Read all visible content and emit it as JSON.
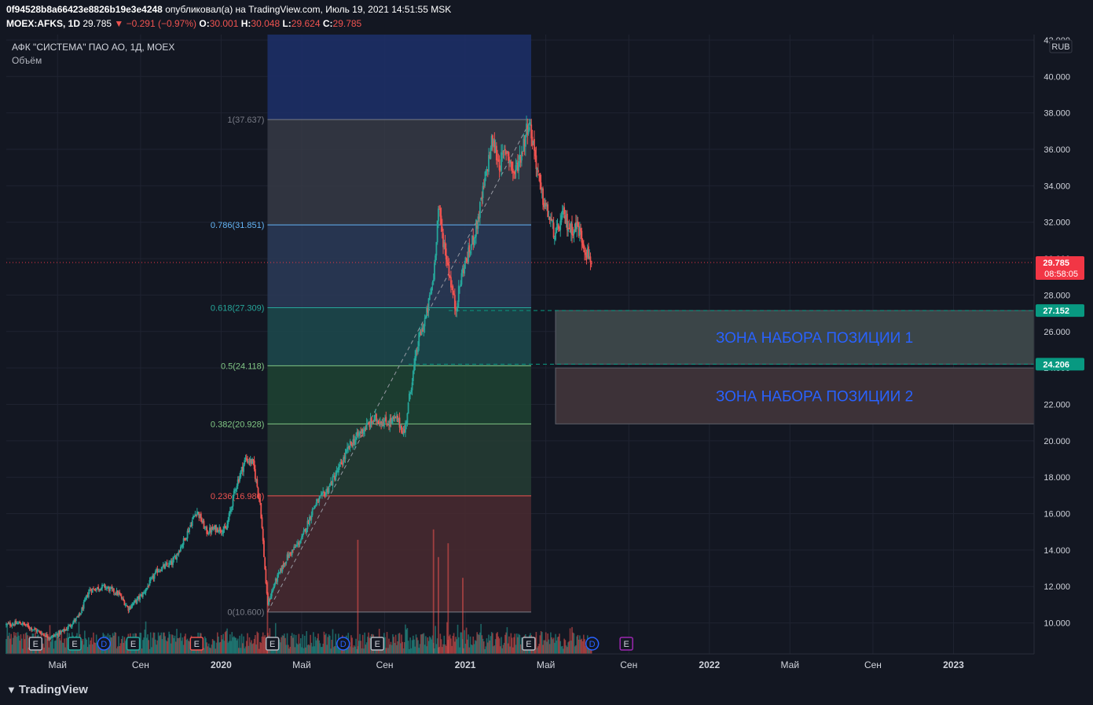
{
  "header": {
    "author": "0f94528b8a66423e8826b19e3e4248",
    "published_text": "опубликовал(а) на TradingView.com, Июль 19, 2021 14:51:55 MSK",
    "symbol": "MOEX:AFKS, 1D",
    "last": "29.785",
    "change": "▼ −0.291 (−0.97%)",
    "o_label": "O:",
    "o_value": "30.001",
    "h_label": "H:",
    "h_value": "30.048",
    "l_label": "L:",
    "l_value": "29.624",
    "c_label": "C:",
    "c_value": "29.785"
  },
  "legend": {
    "instrument": "АФК \"СИСТЕМА\" ПАО АО, 1Д, MOEX",
    "volume_label": "Объём"
  },
  "footer": {
    "brand": "TradingView",
    "logo_icon": "tradingview-logo-icon"
  },
  "chart_data": {
    "type": "candlestick",
    "currency_label": "RUB",
    "y_ticks": [
      "10.000",
      "12.000",
      "14.000",
      "16.000",
      "18.000",
      "20.000",
      "22.000",
      "24.000",
      "26.000",
      "28.000",
      "30.000",
      "32.000",
      "34.000",
      "36.000",
      "38.000",
      "40.000",
      "42.000"
    ],
    "ylim": [
      8.3,
      42.3
    ],
    "x_ticks": [
      {
        "label": "Май",
        "t": 2019.33
      },
      {
        "label": "Сен",
        "t": 2019.67
      },
      {
        "label": "2020",
        "t": 2020.0
      },
      {
        "label": "Май",
        "t": 2020.33
      },
      {
        "label": "Сен",
        "t": 2020.67
      },
      {
        "label": "2021",
        "t": 2021.0
      },
      {
        "label": "Май",
        "t": 2021.33
      },
      {
        "label": "Сен",
        "t": 2021.67
      },
      {
        "label": "2022",
        "t": 2022.0
      },
      {
        "label": "Май",
        "t": 2022.33
      },
      {
        "label": "Сен",
        "t": 2022.67
      },
      {
        "label": "2023",
        "t": 2023.0
      }
    ],
    "xlim": [
      2019.12,
      2023.33
    ],
    "price_path": [
      [
        2019.12,
        9.9
      ],
      [
        2019.18,
        10.0
      ],
      [
        2019.24,
        9.6
      ],
      [
        2019.3,
        9.2
      ],
      [
        2019.36,
        9.6
      ],
      [
        2019.42,
        10.4
      ],
      [
        2019.46,
        11.8
      ],
      [
        2019.52,
        12.0
      ],
      [
        2019.58,
        11.6
      ],
      [
        2019.62,
        10.8
      ],
      [
        2019.68,
        11.6
      ],
      [
        2019.74,
        12.9
      ],
      [
        2019.8,
        13.3
      ],
      [
        2019.85,
        14.6
      ],
      [
        2019.9,
        16.2
      ],
      [
        2019.94,
        15.0
      ],
      [
        2019.98,
        15.2
      ],
      [
        2020.02,
        15.1
      ],
      [
        2020.06,
        17.5
      ],
      [
        2020.1,
        19.0
      ],
      [
        2020.13,
        18.8
      ],
      [
        2020.16,
        16.6
      ],
      [
        2020.19,
        11.0
      ],
      [
        2020.22,
        12.2
      ],
      [
        2020.27,
        13.6
      ],
      [
        2020.33,
        14.6
      ],
      [
        2020.38,
        16.4
      ],
      [
        2020.43,
        17.2
      ],
      [
        2020.48,
        18.4
      ],
      [
        2020.53,
        19.8
      ],
      [
        2020.58,
        20.6
      ],
      [
        2020.63,
        21.2
      ],
      [
        2020.68,
        21.0
      ],
      [
        2020.72,
        21.2
      ],
      [
        2020.75,
        20.4
      ],
      [
        2020.78,
        23.2
      ],
      [
        2020.81,
        25.6
      ],
      [
        2020.84,
        26.8
      ],
      [
        2020.87,
        29.0
      ],
      [
        2020.89,
        32.8
      ],
      [
        2020.91,
        31.0
      ],
      [
        2020.93,
        29.6
      ],
      [
        2020.96,
        27.2
      ],
      [
        2020.99,
        29.4
      ],
      [
        2021.02,
        30.5
      ],
      [
        2021.05,
        32.0
      ],
      [
        2021.08,
        34.2
      ],
      [
        2021.11,
        36.5
      ],
      [
        2021.14,
        35.2
      ],
      [
        2021.17,
        36.0
      ],
      [
        2021.2,
        34.6
      ],
      [
        2021.23,
        35.8
      ],
      [
        2021.26,
        37.6
      ],
      [
        2021.28,
        36.2
      ],
      [
        2021.31,
        33.6
      ],
      [
        2021.34,
        32.4
      ],
      [
        2021.37,
        31.2
      ],
      [
        2021.4,
        32.4
      ],
      [
        2021.43,
        31.6
      ],
      [
        2021.46,
        31.8
      ],
      [
        2021.49,
        30.6
      ],
      [
        2021.52,
        29.8
      ]
    ],
    "volume_spikes": [
      [
        2020.19,
        42
      ],
      [
        2020.56,
        66
      ],
      [
        2020.87,
        72
      ],
      [
        2020.93,
        64
      ],
      [
        2020.89,
        56
      ],
      [
        2020.99,
        44
      ]
    ],
    "fibonacci": {
      "start": 2020.19,
      "end": 2021.27,
      "levels": [
        {
          "label": "1(37.637)",
          "ratio": "1",
          "value": 37.637,
          "color": "#787b86",
          "fill": "#363a45"
        },
        {
          "label": "0.786(31.851)",
          "ratio": "0.786",
          "value": 31.851,
          "color": "#64b5f6",
          "fill": "#2c3b58"
        },
        {
          "label": "0.618(27.309)",
          "ratio": "0.618",
          "value": 27.309,
          "color": "#26a69a",
          "fill": "#1d4a4e"
        },
        {
          "label": "0.5(24.118)",
          "ratio": "0.5",
          "value": 24.118,
          "color": "#81c784",
          "fill": "#1e4433"
        },
        {
          "label": "0.382(20.928)",
          "ratio": "0.382",
          "value": 20.928,
          "color": "#81c784",
          "fill": "#263d34"
        },
        {
          "label": "0.236(16.980)",
          "ratio": "0.236",
          "value": 16.98,
          "color": "#ef5350",
          "fill": "#4a2a30"
        },
        {
          "label": "0(10.600)",
          "ratio": "0",
          "value": 10.6,
          "color": "#787b86",
          "fill": ""
        }
      ],
      "top_extension_fill": "#1d2f66"
    },
    "zones": [
      {
        "label": "ЗОНА НАБОРА ПОЗИЦИИ 1",
        "top": 27.152,
        "bottom": 24.206,
        "fill": "#3b4548",
        "text_color": "#2962ff"
      },
      {
        "label": "ЗОНА НАБОРА ПОЗИЦИИ 2",
        "top": 24.0,
        "bottom": 20.928,
        "fill": "#3d3238",
        "text_color": "#2962ff"
      }
    ],
    "price_tags": [
      {
        "value": 29.785,
        "text": "29.785",
        "sub": "08:58:05",
        "color": "#f23645"
      },
      {
        "value": 27.152,
        "text": "27.152",
        "color": "#089981"
      },
      {
        "value": 24.206,
        "text": "24.206",
        "color": "#089981"
      }
    ],
    "event_markers": [
      {
        "t": 2019.24,
        "kind": "E",
        "color": "#b2b5be"
      },
      {
        "t": 2019.4,
        "kind": "E",
        "color": "#26a69a"
      },
      {
        "t": 2019.52,
        "kind": "D",
        "color": "#2962ff"
      },
      {
        "t": 2019.64,
        "kind": "E",
        "color": "#26a69a"
      },
      {
        "t": 2019.9,
        "kind": "E",
        "color": "#ef5350"
      },
      {
        "t": 2020.21,
        "kind": "E",
        "color": "#b2b5be"
      },
      {
        "t": 2020.5,
        "kind": "D",
        "color": "#2962ff"
      },
      {
        "t": 2020.64,
        "kind": "E",
        "color": "#b2b5be"
      },
      {
        "t": 2021.26,
        "kind": "E",
        "color": "#b2b5be"
      },
      {
        "t": 2021.52,
        "kind": "D",
        "color": "#2962ff"
      },
      {
        "t": 2021.66,
        "kind": "E",
        "color": "#9c27b0"
      }
    ],
    "up_color": "#26a69a",
    "down_color": "#ef5350"
  }
}
